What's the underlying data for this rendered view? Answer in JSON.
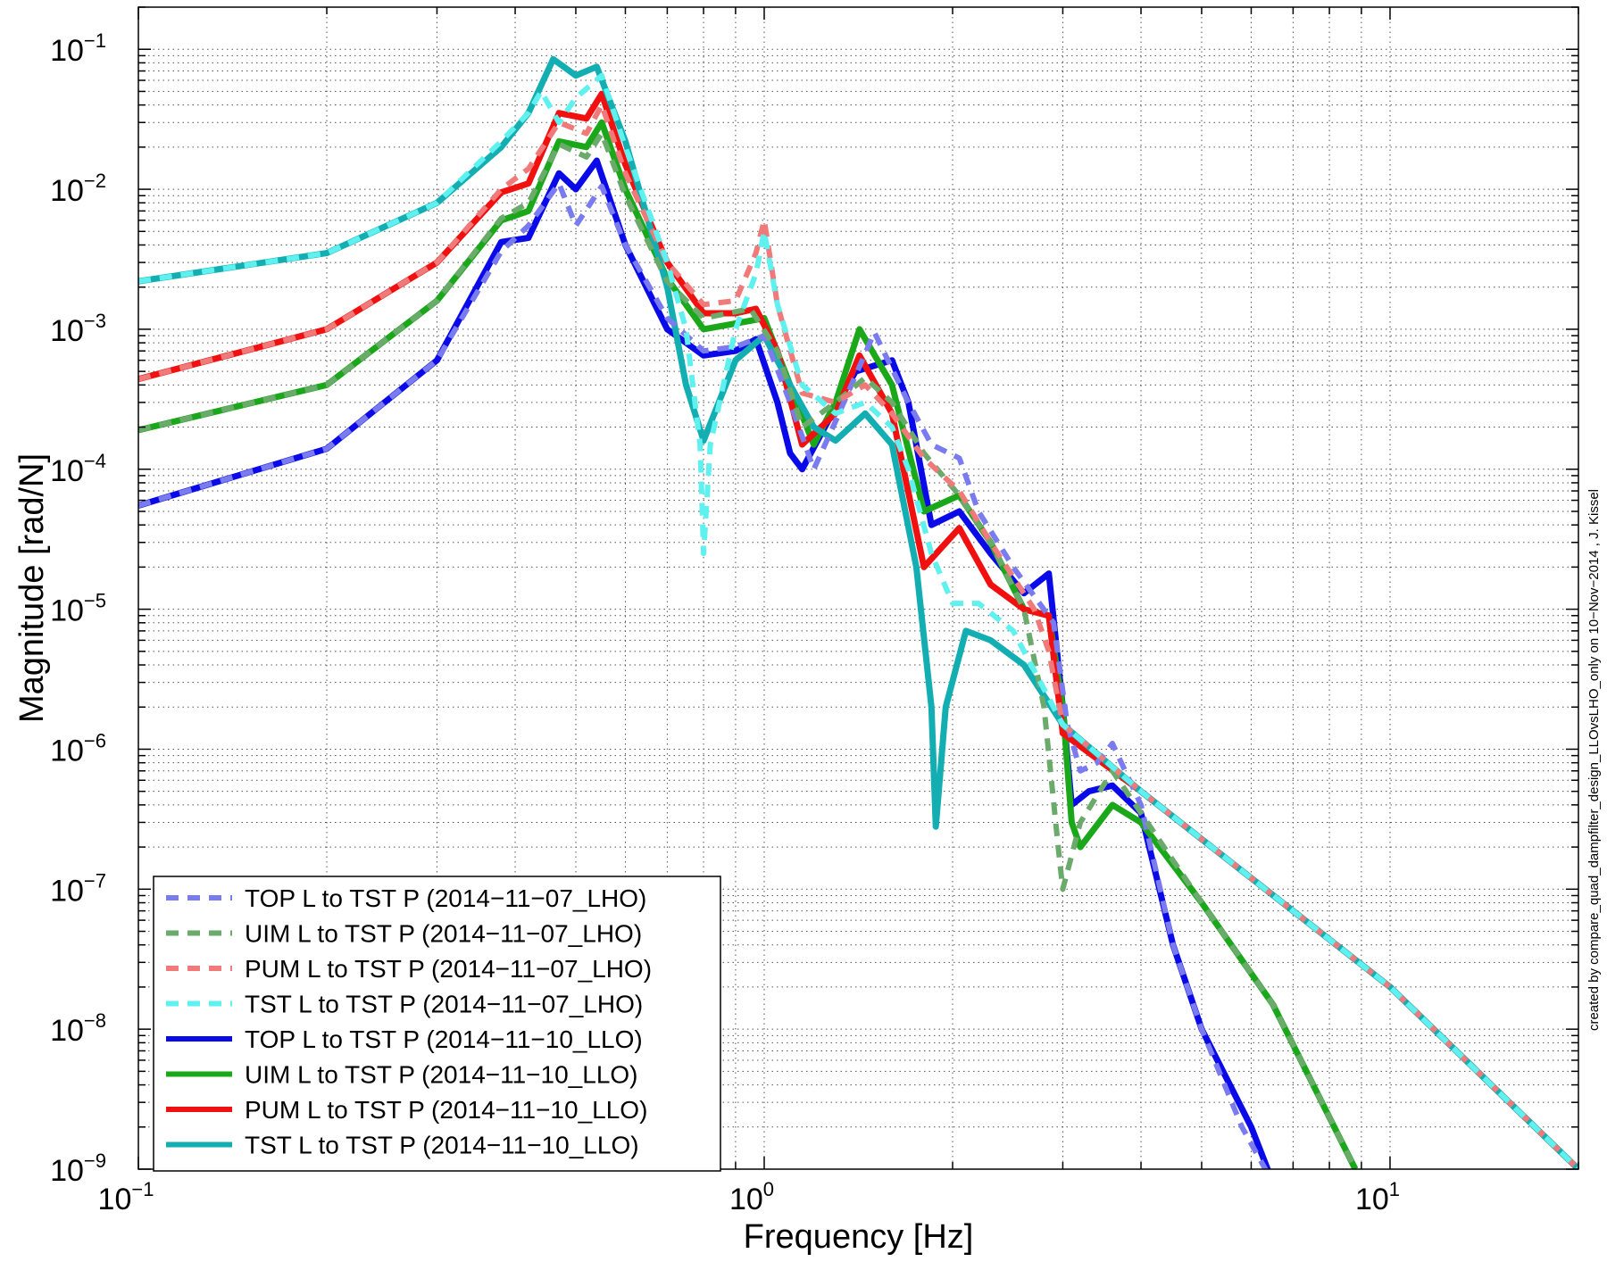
{
  "chart_data": {
    "type": "line",
    "title": "",
    "xlabel": "Frequency [Hz]",
    "ylabel": "Magnitude [rad/N]",
    "xscale": "log",
    "yscale": "log",
    "xlim": [
      0.1,
      20
    ],
    "ylim": [
      1e-09,
      0.2
    ],
    "grid": "major and minor, dotted",
    "legend_position": "bottom-left",
    "x_ticks": [
      {
        "value": 0.1,
        "mantissa": "10",
        "exp": "−1"
      },
      {
        "value": 1,
        "mantissa": "10",
        "exp": "0"
      },
      {
        "value": 10,
        "mantissa": "10",
        "exp": "1"
      }
    ],
    "y_ticks": [
      {
        "value": 1e-09,
        "mantissa": "10",
        "exp": "−9"
      },
      {
        "value": 1e-08,
        "mantissa": "10",
        "exp": "−8"
      },
      {
        "value": 1e-07,
        "mantissa": "10",
        "exp": "−7"
      },
      {
        "value": 1e-06,
        "mantissa": "10",
        "exp": "−6"
      },
      {
        "value": 1e-05,
        "mantissa": "10",
        "exp": "−5"
      },
      {
        "value": 0.0001,
        "mantissa": "10",
        "exp": "−4"
      },
      {
        "value": 0.001,
        "mantissa": "10",
        "exp": "−3"
      },
      {
        "value": 0.01,
        "mantissa": "10",
        "exp": "−2"
      },
      {
        "value": 0.1,
        "mantissa": "10",
        "exp": "−1"
      }
    ],
    "annotation": "created by compare_quad_dampfilter_design_LLOvsLHO_only on 10−Nov−2014 , J. Kissel",
    "series": [
      {
        "name": "TOP L to TST P (2014−11−07_LHO)",
        "color": "#7b7bf0",
        "style": "dashed",
        "points": [
          [
            0.1,
            5.5e-05
          ],
          [
            0.2,
            0.00014
          ],
          [
            0.3,
            0.0006
          ],
          [
            0.38,
            0.0036
          ],
          [
            0.42,
            0.0055
          ],
          [
            0.47,
            0.011
          ],
          [
            0.5,
            0.0055
          ],
          [
            0.55,
            0.0105
          ],
          [
            0.6,
            0.004
          ],
          [
            0.7,
            0.0012
          ],
          [
            0.8,
            0.0007
          ],
          [
            0.9,
            0.00075
          ],
          [
            1.0,
            0.0009
          ],
          [
            1.1,
            0.0003
          ],
          [
            1.2,
            0.0001
          ],
          [
            1.3,
            0.00022
          ],
          [
            1.5,
            0.00095
          ],
          [
            1.7,
            0.0003
          ],
          [
            1.85,
            0.00015
          ],
          [
            2.05,
            0.00012
          ],
          [
            2.2,
            5e-05
          ],
          [
            2.5,
            2e-05
          ],
          [
            2.9,
            8e-06
          ],
          [
            3.05,
            1.5e-06
          ],
          [
            3.2,
            7e-07
          ],
          [
            3.4,
            8e-07
          ],
          [
            3.6,
            1.1e-06
          ],
          [
            4.0,
            4e-07
          ],
          [
            4.5,
            4e-08
          ],
          [
            5.0,
            1e-08
          ],
          [
            5.8,
            2e-09
          ],
          [
            6.5,
            8e-10
          ]
        ]
      },
      {
        "name": "UIM L to TST P (2014−11−07_LHO)",
        "color": "#6aaa6a",
        "style": "dashed",
        "points": [
          [
            0.1,
            0.00019
          ],
          [
            0.2,
            0.0004
          ],
          [
            0.3,
            0.0016
          ],
          [
            0.38,
            0.0062
          ],
          [
            0.42,
            0.008
          ],
          [
            0.47,
            0.021
          ],
          [
            0.52,
            0.017
          ],
          [
            0.55,
            0.025
          ],
          [
            0.6,
            0.009
          ],
          [
            0.7,
            0.0022
          ],
          [
            0.8,
            0.0012
          ],
          [
            0.95,
            0.0014
          ],
          [
            1.05,
            0.0007
          ],
          [
            1.15,
            0.0002
          ],
          [
            1.3,
            0.0003
          ],
          [
            1.45,
            0.00045
          ],
          [
            1.6,
            0.0003
          ],
          [
            1.8,
            0.00013
          ],
          [
            2.05,
            6.5e-05
          ],
          [
            2.3,
            3e-05
          ],
          [
            2.6,
            1e-05
          ],
          [
            2.8,
            2e-06
          ],
          [
            2.95,
            2e-07
          ],
          [
            3.0,
            1e-07
          ],
          [
            3.2,
            3e-07
          ],
          [
            3.6,
            7e-07
          ],
          [
            4.0,
            3.5e-07
          ],
          [
            5.0,
            8e-08
          ],
          [
            6.5,
            1.5e-08
          ],
          [
            8.8,
            1e-09
          ]
        ]
      },
      {
        "name": "PUM L to TST P (2014−11−07_LHO)",
        "color": "#f07a7a",
        "style": "dashed",
        "points": [
          [
            0.1,
            0.00044
          ],
          [
            0.2,
            0.001
          ],
          [
            0.3,
            0.003
          ],
          [
            0.38,
            0.01
          ],
          [
            0.42,
            0.014
          ],
          [
            0.47,
            0.03
          ],
          [
            0.52,
            0.025
          ],
          [
            0.55,
            0.04
          ],
          [
            0.6,
            0.013
          ],
          [
            0.7,
            0.003
          ],
          [
            0.8,
            0.0015
          ],
          [
            0.9,
            0.0016
          ],
          [
            0.97,
            0.0035
          ],
          [
            1.0,
            0.006
          ],
          [
            1.05,
            0.0015
          ],
          [
            1.15,
            0.00035
          ],
          [
            1.3,
            0.0003
          ],
          [
            1.45,
            0.0004
          ],
          [
            1.6,
            0.00025
          ],
          [
            1.8,
            0.00012
          ],
          [
            2.05,
            7e-05
          ],
          [
            2.3,
            3e-05
          ],
          [
            2.7,
            1e-05
          ],
          [
            2.85,
            5e-06
          ],
          [
            3.0,
            1.5e-06
          ],
          [
            4.0,
            5e-07
          ],
          [
            6.0,
            1.2e-07
          ],
          [
            10,
            2e-08
          ],
          [
            20,
            1e-09
          ]
        ]
      },
      {
        "name": "TST L to TST P (2014−11−07_LHO)",
        "color": "#5ff0f0",
        "style": "dashed",
        "points": [
          [
            0.1,
            0.0022
          ],
          [
            0.2,
            0.0035
          ],
          [
            0.3,
            0.008
          ],
          [
            0.38,
            0.022
          ],
          [
            0.42,
            0.035
          ],
          [
            0.44,
            0.05
          ],
          [
            0.47,
            0.03
          ],
          [
            0.5,
            0.045
          ],
          [
            0.55,
            0.065
          ],
          [
            0.6,
            0.02
          ],
          [
            0.7,
            0.003
          ],
          [
            0.75,
            0.001
          ],
          [
            0.79,
            0.00015
          ],
          [
            0.8,
            2.5e-05
          ],
          [
            0.82,
            0.00015
          ],
          [
            0.9,
            0.001
          ],
          [
            0.97,
            0.0025
          ],
          [
            1.0,
            0.005
          ],
          [
            1.05,
            0.0015
          ],
          [
            1.15,
            0.0004
          ],
          [
            1.3,
            0.00025
          ],
          [
            1.45,
            0.0003
          ],
          [
            1.6,
            0.0002
          ],
          [
            1.7,
            0.0001
          ],
          [
            1.85,
            2.5e-05
          ],
          [
            2.0,
            1.1e-05
          ],
          [
            2.2,
            1.1e-05
          ],
          [
            2.5,
            7e-06
          ],
          [
            3.0,
            1.5e-06
          ],
          [
            4.0,
            5e-07
          ],
          [
            6.0,
            1.2e-07
          ],
          [
            10,
            2e-08
          ],
          [
            20,
            1e-09
          ]
        ]
      },
      {
        "name": "TOP L to TST P (2014−11−10_LLO)",
        "color": "#0a0ae8",
        "style": "solid",
        "points": [
          [
            0.1,
            5.5e-05
          ],
          [
            0.2,
            0.00014
          ],
          [
            0.3,
            0.0006
          ],
          [
            0.38,
            0.0042
          ],
          [
            0.42,
            0.0045
          ],
          [
            0.47,
            0.013
          ],
          [
            0.5,
            0.01
          ],
          [
            0.54,
            0.016
          ],
          [
            0.6,
            0.004
          ],
          [
            0.7,
            0.001
          ],
          [
            0.8,
            0.00065
          ],
          [
            0.9,
            0.0007
          ],
          [
            0.97,
            0.00085
          ],
          [
            1.05,
            0.0003
          ],
          [
            1.1,
            0.00013
          ],
          [
            1.15,
            0.0001
          ],
          [
            1.25,
            0.0002
          ],
          [
            1.4,
            0.0005
          ],
          [
            1.6,
            0.0006
          ],
          [
            1.7,
            0.0003
          ],
          [
            1.85,
            4e-05
          ],
          [
            2.05,
            5e-05
          ],
          [
            2.3,
            2.5e-05
          ],
          [
            2.6,
            1.3e-05
          ],
          [
            2.85,
            1.8e-05
          ],
          [
            3.0,
            2e-06
          ],
          [
            3.1,
            4e-07
          ],
          [
            3.3,
            5e-07
          ],
          [
            3.6,
            5.5e-07
          ],
          [
            4.0,
            3.5e-07
          ],
          [
            4.5,
            4e-08
          ],
          [
            5.0,
            1e-08
          ],
          [
            6.0,
            2e-09
          ],
          [
            6.5,
            8e-10
          ]
        ]
      },
      {
        "name": "UIM L to TST P (2014−11−10_LLO)",
        "color": "#1aa81a",
        "style": "solid",
        "points": [
          [
            0.1,
            0.00019
          ],
          [
            0.2,
            0.0004
          ],
          [
            0.3,
            0.0016
          ],
          [
            0.38,
            0.006
          ],
          [
            0.42,
            0.007
          ],
          [
            0.47,
            0.022
          ],
          [
            0.52,
            0.02
          ],
          [
            0.55,
            0.03
          ],
          [
            0.6,
            0.01
          ],
          [
            0.7,
            0.0023
          ],
          [
            0.8,
            0.001
          ],
          [
            0.9,
            0.0011
          ],
          [
            1.0,
            0.0012
          ],
          [
            1.1,
            0.0004
          ],
          [
            1.2,
            0.00015
          ],
          [
            1.3,
            0.0003
          ],
          [
            1.42,
            0.001
          ],
          [
            1.6,
            0.0004
          ],
          [
            1.8,
            5e-05
          ],
          [
            2.05,
            6.5e-05
          ],
          [
            2.3,
            3e-05
          ],
          [
            2.6,
            1e-05
          ],
          [
            2.85,
            9e-06
          ],
          [
            3.0,
            2e-06
          ],
          [
            3.1,
            3e-07
          ],
          [
            3.2,
            2e-07
          ],
          [
            3.6,
            4e-07
          ],
          [
            4.0,
            3e-07
          ],
          [
            5.0,
            8e-08
          ],
          [
            6.5,
            1.5e-08
          ],
          [
            8.8,
            1e-09
          ]
        ]
      },
      {
        "name": "PUM L to TST P (2014−11−10_LLO)",
        "color": "#f01010",
        "style": "solid",
        "points": [
          [
            0.1,
            0.00044
          ],
          [
            0.2,
            0.001
          ],
          [
            0.3,
            0.003
          ],
          [
            0.38,
            0.0095
          ],
          [
            0.42,
            0.011
          ],
          [
            0.47,
            0.035
          ],
          [
            0.52,
            0.032
          ],
          [
            0.55,
            0.048
          ],
          [
            0.6,
            0.015
          ],
          [
            0.7,
            0.003
          ],
          [
            0.8,
            0.0013
          ],
          [
            0.9,
            0.0013
          ],
          [
            0.97,
            0.0014
          ],
          [
            1.05,
            0.0007
          ],
          [
            1.15,
            0.00015
          ],
          [
            1.3,
            0.00025
          ],
          [
            1.42,
            0.00065
          ],
          [
            1.6,
            0.00025
          ],
          [
            1.8,
            2e-05
          ],
          [
            2.05,
            3.8e-05
          ],
          [
            2.3,
            1.5e-05
          ],
          [
            2.6,
            1e-05
          ],
          [
            2.85,
            9e-06
          ],
          [
            3.0,
            1.3e-06
          ],
          [
            4.0,
            5e-07
          ],
          [
            6.0,
            1.2e-07
          ],
          [
            10,
            2e-08
          ],
          [
            20,
            1e-09
          ]
        ]
      },
      {
        "name": "TST L to TST P (2014−11−10_LLO)",
        "color": "#12aeb2",
        "style": "solid",
        "points": [
          [
            0.1,
            0.0022
          ],
          [
            0.2,
            0.0035
          ],
          [
            0.3,
            0.008
          ],
          [
            0.38,
            0.02
          ],
          [
            0.42,
            0.035
          ],
          [
            0.46,
            0.085
          ],
          [
            0.5,
            0.065
          ],
          [
            0.54,
            0.075
          ],
          [
            0.6,
            0.022
          ],
          [
            0.7,
            0.002
          ],
          [
            0.75,
            0.0004
          ],
          [
            0.8,
            0.00016
          ],
          [
            0.9,
            0.0006
          ],
          [
            1.0,
            0.0009
          ],
          [
            1.1,
            0.0004
          ],
          [
            1.2,
            0.0002
          ],
          [
            1.3,
            0.00016
          ],
          [
            1.45,
            0.00025
          ],
          [
            1.6,
            0.00015
          ],
          [
            1.75,
            2e-05
          ],
          [
            1.85,
            2e-06
          ],
          [
            1.88,
            2.8e-07
          ],
          [
            1.95,
            2e-06
          ],
          [
            2.1,
            7e-06
          ],
          [
            2.3,
            6e-06
          ],
          [
            2.6,
            4e-06
          ],
          [
            3.0,
            1.5e-06
          ],
          [
            4.0,
            5e-07
          ],
          [
            6.0,
            1.2e-07
          ],
          [
            10,
            2e-08
          ],
          [
            20,
            1e-09
          ]
        ]
      }
    ]
  }
}
